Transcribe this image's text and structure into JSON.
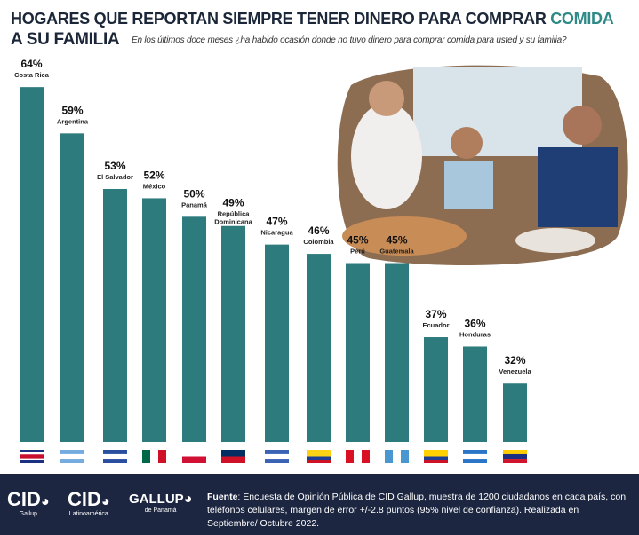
{
  "title": {
    "line1": "HOGARES QUE REPORTAN SIEMPRE TENER DINERO PARA COMPRAR ",
    "highlight": "COMIDA",
    "line2": "A SU FAMILIA",
    "subtitle": "En los últimos doce meses ¿ha habido ocasión donde no tuvo dinero para comprar comida para usted y su familia?"
  },
  "colors": {
    "bar": "#2e7b7e",
    "title": "#1b2638",
    "highlight": "#2e8a86",
    "footer": "#1c2640"
  },
  "chart_data": {
    "type": "bar",
    "categories": [
      "Costa Rica",
      "Argentina",
      "El Salvador",
      "México",
      "Panamá",
      "República Dominicana",
      "Nicaragua",
      "Colombia",
      "Perú",
      "Guatemala",
      "Ecuador",
      "Honduras",
      "Venezuela"
    ],
    "values": [
      64,
      59,
      53,
      52,
      50,
      49,
      47,
      46,
      45,
      45,
      37,
      36,
      32
    ],
    "value_labels": [
      "64%",
      "59%",
      "53%",
      "52%",
      "50%",
      "49%",
      "47%",
      "46%",
      "45%",
      "45%",
      "37%",
      "36%",
      "32%"
    ],
    "flags": [
      "costa-rica-flag",
      "argentina-flag",
      "el-salvador-flag",
      "mexico-flag",
      "panama-flag",
      "dominican-republic-flag",
      "nicaragua-flag",
      "colombia-flag",
      "peru-flag",
      "guatemala-flag",
      "ecuador-flag",
      "honduras-flag",
      "venezuela-flag"
    ],
    "grid": false
  },
  "footer": {
    "logos": [
      {
        "name": "CID",
        "sub": "Gallup"
      },
      {
        "name": "CID",
        "sub": "Latinoamérica"
      },
      {
        "name": "GALLUP",
        "sub": "de Panamá"
      }
    ],
    "source_label": "Fuente",
    "source_text": ": Encuesta de Opinión Pública de CID Gallup, muestra de 1200 ciudadanos en cada país, con teléfonos celulares, margen de error +/-2.8 puntos (95% nivel de confianza).  Realizada en Septiembre/ Octubre 2022."
  }
}
